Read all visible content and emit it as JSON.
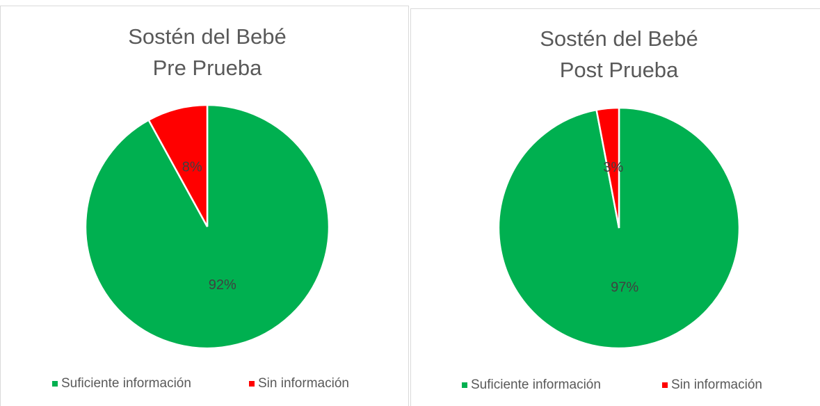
{
  "chart_data": [
    {
      "type": "pie",
      "title": [
        "Sostén del Bebé",
        "Pre Prueba"
      ],
      "categories": [
        "Suficiente información",
        "Sin información"
      ],
      "values": [
        92,
        8
      ],
      "value_labels": [
        "92%",
        "8%"
      ],
      "colors": [
        "#00b050",
        "#ff0000"
      ],
      "legend": "bottom"
    },
    {
      "type": "pie",
      "title": [
        "Sostén del Bebé",
        "Post Prueba"
      ],
      "categories": [
        "Suficiente información",
        "Sin información"
      ],
      "values": [
        97,
        3
      ],
      "value_labels": [
        "97%",
        "3%"
      ],
      "colors": [
        "#00b050",
        "#ff0000"
      ],
      "legend": "bottom"
    }
  ]
}
